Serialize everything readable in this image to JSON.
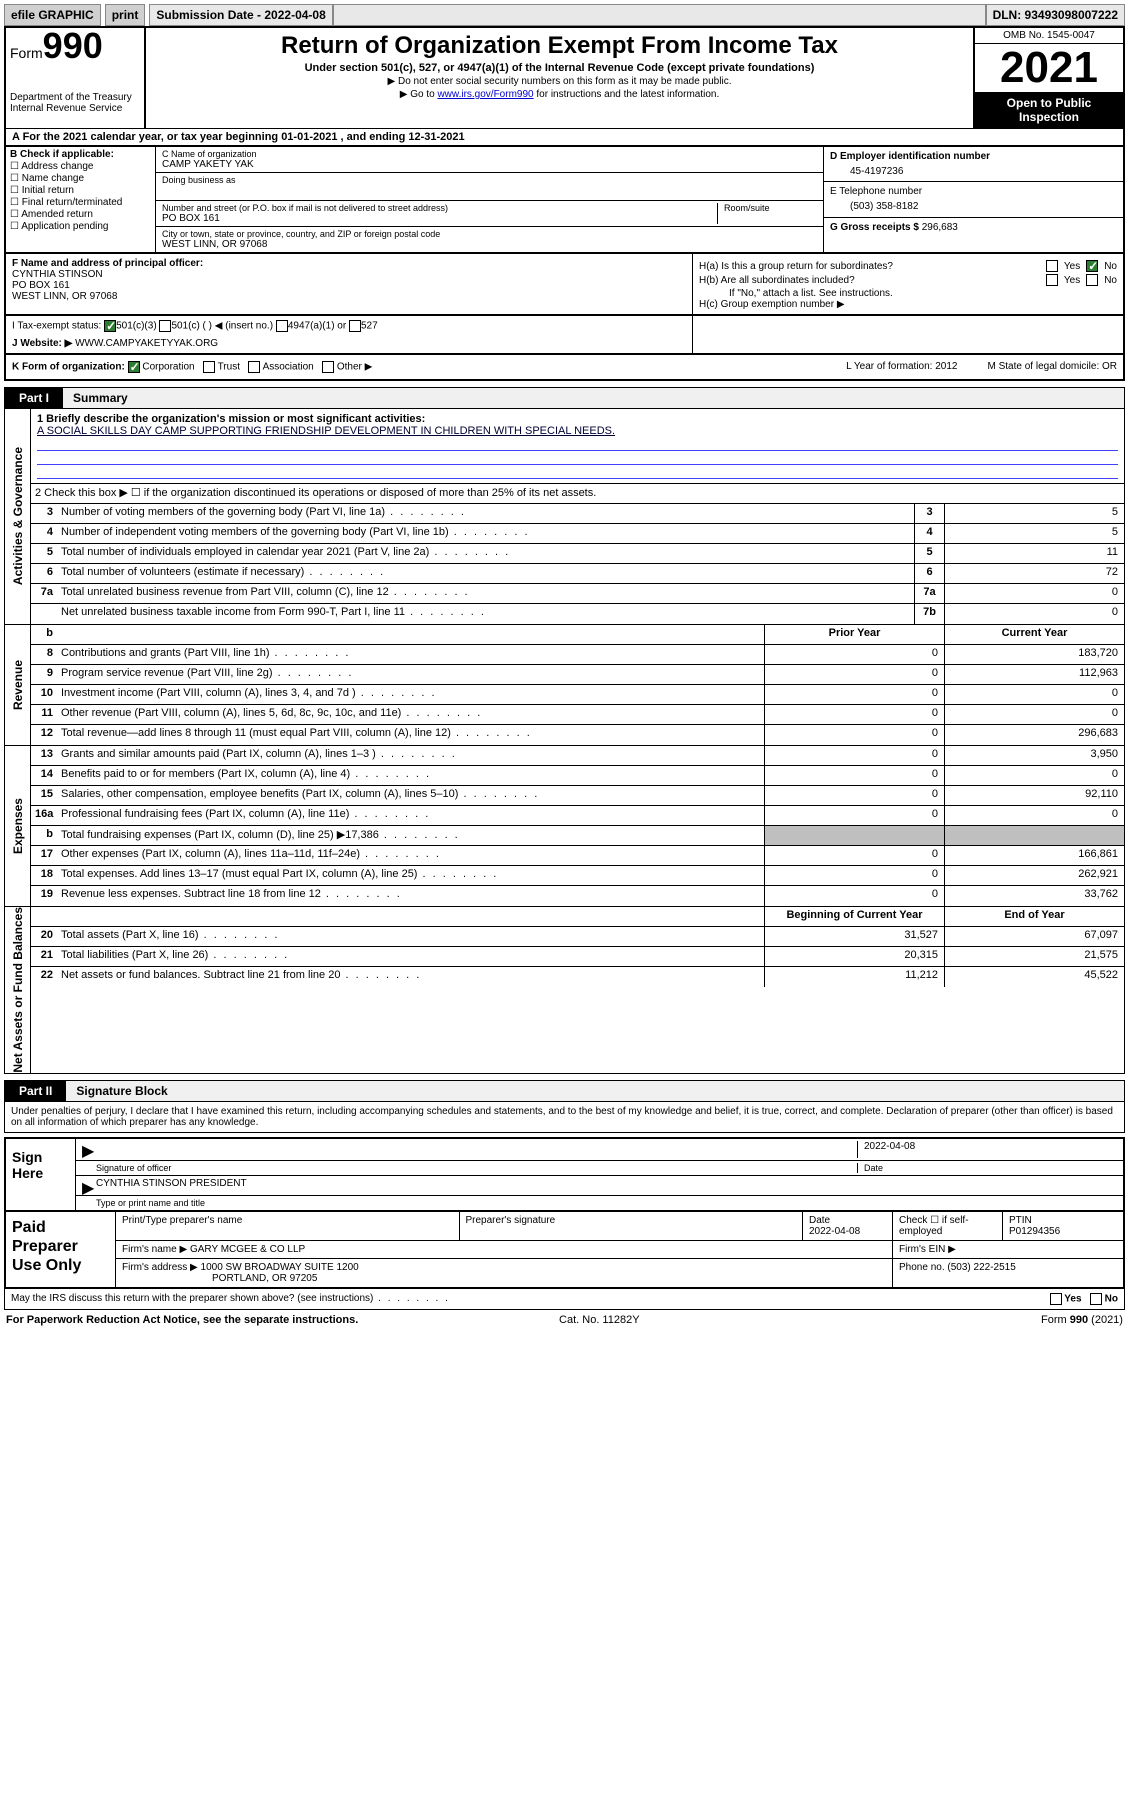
{
  "topbar": {
    "efile": "efile GRAPHIC",
    "print": "print",
    "submission_label": "Submission Date - 2022-04-08",
    "dln": "DLN: 93493098007222"
  },
  "header": {
    "form_word": "Form",
    "form_num": "990",
    "dept": "Department of the Treasury",
    "irs": "Internal Revenue Service",
    "title": "Return of Organization Exempt From Income Tax",
    "subtitle": "Under section 501(c), 527, or 4947(a)(1) of the Internal Revenue Code (except private foundations)",
    "note1": "▶ Do not enter social security numbers on this form as it may be made public.",
    "note2_pre": "▶ Go to ",
    "note2_link": "www.irs.gov/Form990",
    "note2_post": " for instructions and the latest information.",
    "omb": "OMB No. 1545-0047",
    "year": "2021",
    "otp": "Open to Public Inspection"
  },
  "period": {
    "text": "A For the 2021 calendar year, or tax year beginning 01-01-2021   , and ending 12-31-2021"
  },
  "boxB": {
    "label": "B Check if applicable:",
    "items": [
      "Address change",
      "Name change",
      "Initial return",
      "Final return/terminated",
      "Amended return",
      "Application pending"
    ]
  },
  "boxC": {
    "name_label": "C Name of organization",
    "name": "CAMP YAKETY YAK",
    "dba_label": "Doing business as",
    "addr_label": "Number and street (or P.O. box if mail is not delivered to street address)",
    "room_label": "Room/suite",
    "addr": "PO BOX 161",
    "city_label": "City or town, state or province, country, and ZIP or foreign postal code",
    "city": "WEST LINN, OR  97068"
  },
  "boxD": {
    "label": "D Employer identification number",
    "value": "45-4197236"
  },
  "boxE": {
    "label": "E Telephone number",
    "value": "(503) 358-8182"
  },
  "boxG": {
    "label": "G Gross receipts $",
    "value": "296,683"
  },
  "boxF": {
    "label": "F Name and address of principal officer:",
    "name": "CYNTHIA STINSON",
    "addr1": "PO BOX 161",
    "addr2": "WEST LINN, OR  97068"
  },
  "boxH": {
    "a_label": "H(a)  Is this a group return for subordinates?",
    "a_yes": "Yes",
    "a_no": "No",
    "b_label": "H(b)  Are all subordinates included?",
    "b_note": "If \"No,\" attach a list. See instructions.",
    "c_label": "H(c)  Group exemption number ▶"
  },
  "boxI": {
    "label": "I   Tax-exempt status:",
    "opts": [
      "501(c)(3)",
      "501(c) (   ) ◀ (insert no.)",
      "4947(a)(1) or",
      "527"
    ]
  },
  "boxJ": {
    "label": "J   Website: ▶",
    "value": "WWW.CAMPYAKETYYAK.ORG"
  },
  "boxK": {
    "label": "K Form of organization:",
    "opts": [
      "Corporation",
      "Trust",
      "Association",
      "Other ▶"
    ],
    "L": "L Year of formation: 2012",
    "M": "M State of legal domicile: OR"
  },
  "part1": {
    "label": "Part I",
    "title": "Summary"
  },
  "summary": {
    "q1_label": "1  Briefly describe the organization's mission or most significant activities:",
    "q1_text": "A SOCIAL SKILLS DAY CAMP SUPPORTING FRIENDSHIP DEVELOPMENT IN CHILDREN WITH SPECIAL NEEDS.",
    "q2": "2   Check this box ▶ ☐  if the organization discontinued its operations or disposed of more than 25% of its net assets."
  },
  "gov_rows": [
    {
      "n": "3",
      "d": "Number of voting members of the governing body (Part VI, line 1a)",
      "tag": "3",
      "v": "5"
    },
    {
      "n": "4",
      "d": "Number of independent voting members of the governing body (Part VI, line 1b)",
      "tag": "4",
      "v": "5"
    },
    {
      "n": "5",
      "d": "Total number of individuals employed in calendar year 2021 (Part V, line 2a)",
      "tag": "5",
      "v": "11"
    },
    {
      "n": "6",
      "d": "Total number of volunteers (estimate if necessary)",
      "tag": "6",
      "v": "72"
    },
    {
      "n": "7a",
      "d": "Total unrelated business revenue from Part VIII, column (C), line 12",
      "tag": "7a",
      "v": "0"
    },
    {
      "n": "",
      "d": "Net unrelated business taxable income from Form 990-T, Part I, line 11",
      "tag": "7b",
      "v": "0"
    }
  ],
  "col_headers": {
    "b": "b",
    "prior": "Prior Year",
    "current": "Current Year"
  },
  "rev_rows": [
    {
      "n": "8",
      "d": "Contributions and grants (Part VIII, line 1h)",
      "a": "0",
      "b": "183,720"
    },
    {
      "n": "9",
      "d": "Program service revenue (Part VIII, line 2g)",
      "a": "0",
      "b": "112,963"
    },
    {
      "n": "10",
      "d": "Investment income (Part VIII, column (A), lines 3, 4, and 7d )",
      "a": "0",
      "b": "0"
    },
    {
      "n": "11",
      "d": "Other revenue (Part VIII, column (A), lines 5, 6d, 8c, 9c, 10c, and 11e)",
      "a": "0",
      "b": "0"
    },
    {
      "n": "12",
      "d": "Total revenue—add lines 8 through 11 (must equal Part VIII, column (A), line 12)",
      "a": "0",
      "b": "296,683"
    }
  ],
  "exp_rows": [
    {
      "n": "13",
      "d": "Grants and similar amounts paid (Part IX, column (A), lines 1–3 )",
      "a": "0",
      "b": "3,950"
    },
    {
      "n": "14",
      "d": "Benefits paid to or for members (Part IX, column (A), line 4)",
      "a": "0",
      "b": "0"
    },
    {
      "n": "15",
      "d": "Salaries, other compensation, employee benefits (Part IX, column (A), lines 5–10)",
      "a": "0",
      "b": "92,110"
    },
    {
      "n": "16a",
      "d": "Professional fundraising fees (Part IX, column (A), line 11e)",
      "a": "0",
      "b": "0"
    },
    {
      "n": "b",
      "d": "Total fundraising expenses (Part IX, column (D), line 25) ▶17,386",
      "a": "shade",
      "b": "shade"
    },
    {
      "n": "17",
      "d": "Other expenses (Part IX, column (A), lines 11a–11d, 11f–24e)",
      "a": "0",
      "b": "166,861"
    },
    {
      "n": "18",
      "d": "Total expenses. Add lines 13–17 (must equal Part IX, column (A), line 25)",
      "a": "0",
      "b": "262,921"
    },
    {
      "n": "19",
      "d": "Revenue less expenses. Subtract line 18 from line 12",
      "a": "0",
      "b": "33,762"
    }
  ],
  "na_headers": {
    "a": "Beginning of Current Year",
    "b": "End of Year"
  },
  "na_rows": [
    {
      "n": "20",
      "d": "Total assets (Part X, line 16)",
      "a": "31,527",
      "b": "67,097"
    },
    {
      "n": "21",
      "d": "Total liabilities (Part X, line 26)",
      "a": "20,315",
      "b": "21,575"
    },
    {
      "n": "22",
      "d": "Net assets or fund balances. Subtract line 21 from line 20",
      "a": "11,212",
      "b": "45,522"
    }
  ],
  "side_labels": {
    "gov": "Activities & Governance",
    "rev": "Revenue",
    "exp": "Expenses",
    "na": "Net Assets or Fund Balances"
  },
  "part2": {
    "label": "Part II",
    "title": "Signature Block"
  },
  "penalties": "Under penalties of perjury, I declare that I have examined this return, including accompanying schedules and statements, and to the best of my knowledge and belief, it is true, correct, and complete. Declaration of preparer (other than officer) is based on all information of which preparer has any knowledge.",
  "sign": {
    "label": "Sign Here",
    "sig_label": "Signature of officer",
    "date_label": "Date",
    "date": "2022-04-08",
    "name": "CYNTHIA STINSON  PRESIDENT",
    "name_label": "Type or print name and title"
  },
  "paid": {
    "label": "Paid Preparer Use Only",
    "h1": "Print/Type preparer's name",
    "h2": "Preparer's signature",
    "h3": "Date",
    "h3v": "2022-04-08",
    "h4": "Check ☐ if self-employed",
    "h5": "PTIN",
    "h5v": "P01294356",
    "firm_label": "Firm's name    ▶",
    "firm": "GARY MCGEE & CO LLP",
    "ein_label": "Firm's EIN ▶",
    "addr_label": "Firm's address ▶",
    "addr1": "1000 SW BROADWAY SUITE 1200",
    "addr2": "PORTLAND, OR  97205",
    "phone_label": "Phone no.",
    "phone": "(503) 222-2515"
  },
  "discuss": {
    "q": "May the IRS discuss this return with the preparer shown above? (see instructions)",
    "yes": "Yes",
    "no": "No"
  },
  "footer": {
    "left": "For Paperwork Reduction Act Notice, see the separate instructions.",
    "mid": "Cat. No. 11282Y",
    "right": "Form 990 (2021)"
  }
}
